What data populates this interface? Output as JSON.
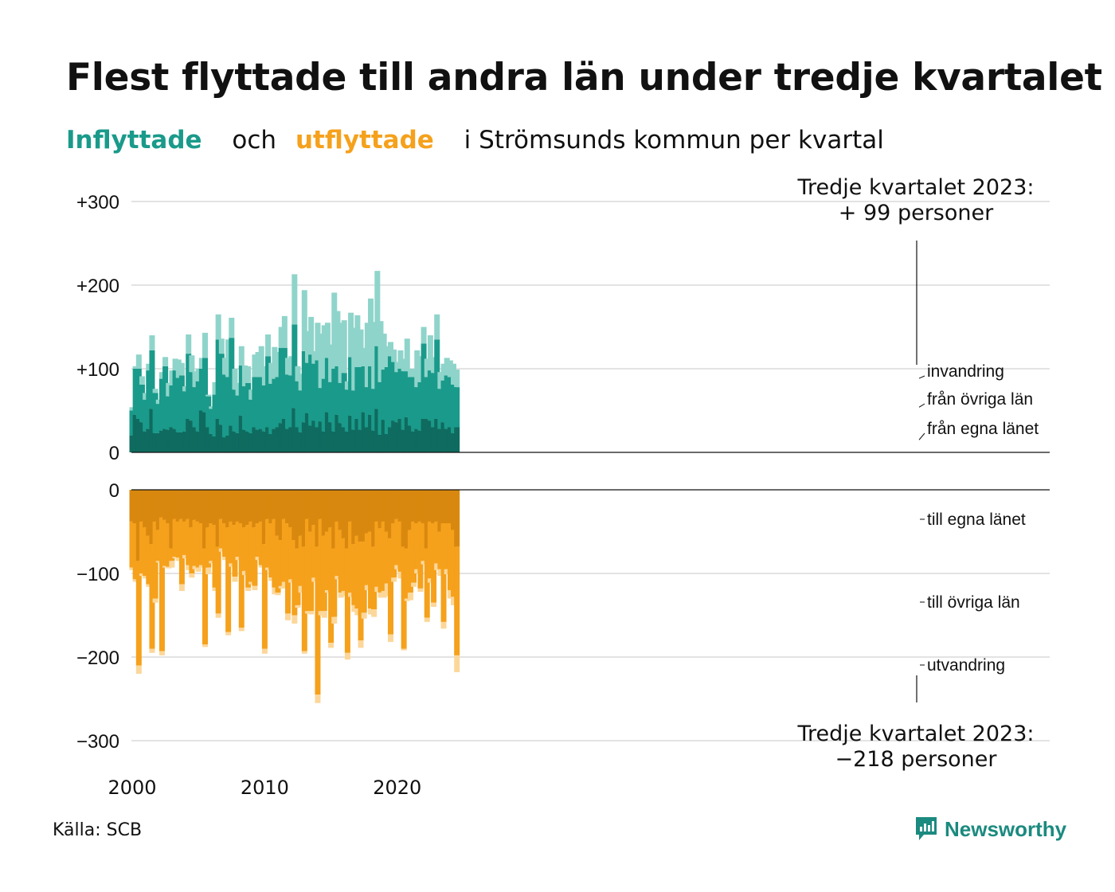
{
  "title": "Flest flyttade till andra län under tredje kvartalet",
  "subtitle": {
    "part1": "Inflyttade",
    "part2": "och",
    "part3": "utflyttade",
    "part4": "i Strömsunds  kommun  per  kvartal"
  },
  "source": "Källa: SCB",
  "brand": {
    "name": "Newsworthy",
    "icon": "newsworthy-logo-icon"
  },
  "colors": {
    "in_local": "#0f6b5f",
    "in_other": "#1a9a8a",
    "in_immig": "#8fd4ca",
    "out_local": "#d9880f",
    "out_other": "#f5a11c",
    "out_emig": "#fcd79a",
    "gridline": "#e3e3e3",
    "text": "#111111"
  },
  "chart_data": {
    "type": "bar",
    "stacked": true,
    "x_start": "2000 Q1",
    "x_end": "2023 Q3",
    "year_ticks": [
      "2000",
      "2010",
      "2020"
    ],
    "grid": true,
    "top_panel": {
      "ylim": [
        0,
        300
      ],
      "y_ticks": [
        "0",
        "+100",
        "+200",
        "+300"
      ],
      "annotation": {
        "line1": "Tredje kvartalet 2023:",
        "line2": "+ 99 personer"
      },
      "series_labels": {
        "immig": "invandring",
        "other": "från övriga län",
        "local": "från egna länet"
      },
      "local": [
        20,
        45,
        40,
        36,
        25,
        28,
        52,
        23,
        23,
        26,
        28,
        27,
        30,
        28,
        24,
        24,
        25,
        40,
        38,
        30,
        25,
        50,
        48,
        30,
        22,
        19,
        40,
        33,
        18,
        20,
        32,
        25,
        23,
        44,
        27,
        25,
        23,
        30,
        27,
        28,
        25,
        30,
        22,
        28,
        30,
        35,
        40,
        28,
        30,
        53,
        30,
        24,
        36,
        47,
        32,
        38,
        30,
        37,
        25,
        48,
        36,
        25,
        45,
        35,
        30,
        25,
        44,
        27,
        40,
        27,
        48,
        30,
        45,
        26,
        52,
        21,
        39,
        22,
        30,
        38,
        36,
        40,
        27,
        42,
        32,
        25,
        28,
        26,
        40,
        40,
        38,
        30,
        40,
        28,
        36,
        28,
        30,
        23,
        30
      ],
      "other": [
        30,
        55,
        60,
        45,
        38,
        70,
        70,
        48,
        35,
        62,
        75,
        40,
        50,
        70,
        65,
        68,
        48,
        78,
        58,
        48,
        60,
        50,
        65,
        37,
        30,
        50,
        95,
        85,
        75,
        70,
        105,
        50,
        45,
        60,
        52,
        58,
        40,
        60,
        63,
        62,
        55,
        85,
        60,
        60,
        60,
        90,
        85,
        65,
        62,
        100,
        55,
        50,
        85,
        60,
        85,
        68,
        80,
        40,
        63,
        65,
        48,
        75,
        58,
        48,
        65,
        50,
        70,
        47,
        62,
        75,
        55,
        48,
        58,
        50,
        75,
        63,
        60,
        80,
        85,
        70,
        60,
        60,
        70,
        55,
        58,
        65,
        50,
        58,
        90,
        50,
        60,
        65,
        95,
        48,
        50,
        64,
        60,
        58,
        48
      ],
      "immig": [
        4,
        3,
        17,
        10,
        8,
        8,
        18,
        5,
        5,
        8,
        11,
        16,
        18,
        14,
        22,
        15,
        6,
        23,
        20,
        19,
        15,
        13,
        30,
        2,
        3,
        15,
        30,
        18,
        20,
        45,
        24,
        25,
        15,
        23,
        25,
        20,
        12,
        27,
        30,
        37,
        23,
        26,
        25,
        38,
        30,
        25,
        38,
        20,
        23,
        60,
        18,
        20,
        73,
        38,
        45,
        15,
        45,
        65,
        64,
        42,
        45,
        91,
        66,
        72,
        63,
        10,
        53,
        75,
        62,
        45,
        22,
        77,
        81,
        80,
        90,
        73,
        43,
        25,
        17,
        15,
        12,
        22,
        15,
        39,
        10,
        10,
        44,
        31,
        20,
        22,
        42,
        19,
        30,
        20,
        20,
        21,
        20,
        25,
        21
      ]
    },
    "bottom_panel": {
      "ylim": [
        -300,
        0
      ],
      "y_ticks": [
        "0",
        "−100",
        "−200",
        "−300"
      ],
      "annotation": {
        "line1": "Tredje kvartalet 2023:",
        "line2": "−218 personer"
      },
      "series_labels": {
        "local": "till egna länet",
        "other": "till övriga län",
        "emig": "utvandring"
      },
      "local": [
        -38,
        -40,
        -85,
        -38,
        -45,
        -55,
        -65,
        -38,
        -48,
        -33,
        -36,
        -40,
        -70,
        -35,
        -38,
        -35,
        -38,
        -35,
        -45,
        -36,
        -38,
        -40,
        -70,
        -45,
        -40,
        -42,
        -68,
        -35,
        -40,
        -45,
        -38,
        -42,
        -38,
        -40,
        -45,
        -42,
        -38,
        -45,
        -40,
        -38,
        -65,
        -35,
        -40,
        -35,
        -55,
        -60,
        -35,
        -40,
        -45,
        -60,
        -70,
        -55,
        -68,
        -35,
        -50,
        -42,
        -68,
        -35,
        -55,
        -50,
        -45,
        -70,
        -38,
        -48,
        -58,
        -70,
        -38,
        -65,
        -55,
        -62,
        -62,
        -52,
        -50,
        -68,
        -38,
        -46,
        -38,
        -50,
        -58,
        -40,
        -35,
        -38,
        -68,
        -70,
        -48,
        -38,
        -40,
        -38,
        -40,
        -70,
        -38,
        -40,
        -38,
        -50,
        -40,
        -40,
        -40,
        -48,
        -68
      ],
      "other": [
        -55,
        -67,
        -125,
        -62,
        -58,
        -58,
        -125,
        -92,
        -37,
        -160,
        -55,
        -52,
        -15,
        -45,
        -43,
        -78,
        -40,
        -55,
        -55,
        -55,
        -55,
        -50,
        -115,
        -48,
        -45,
        -75,
        -80,
        -35,
        -40,
        -125,
        -50,
        -62,
        -42,
        -125,
        -52,
        -75,
        -72,
        -70,
        -40,
        -52,
        -125,
        -58,
        -65,
        -82,
        -68,
        -55,
        -75,
        -108,
        -62,
        -90,
        -68,
        -60,
        -125,
        -110,
        -95,
        -63,
        -177,
        -110,
        -90,
        -70,
        -138,
        -82,
        -65,
        -75,
        -63,
        -125,
        -85,
        -73,
        -87,
        -118,
        -85,
        -62,
        -92,
        -75,
        -78,
        -77,
        -83,
        -62,
        -115,
        -65,
        -55,
        -60,
        -122,
        -60,
        -75,
        -73,
        -55,
        -80,
        -45,
        -83,
        -68,
        -95,
        -50,
        -45,
        -118,
        -55,
        -80,
        -80,
        -130
      ],
      "emig": [
        -3,
        -3,
        -10,
        -3,
        -3,
        -3,
        -5,
        -5,
        -2,
        -5,
        -2,
        -2,
        -8,
        -2,
        -4,
        -8,
        -4,
        -6,
        -5,
        -4,
        -5,
        -3,
        -3,
        -8,
        -3,
        -4,
        -5,
        -4,
        -4,
        -4,
        -4,
        -6,
        -4,
        -4,
        -5,
        -4,
        -3,
        -5,
        -4,
        -3,
        -6,
        -3,
        -4,
        -8,
        -3,
        -3,
        -8,
        -8,
        -4,
        -10,
        -3,
        -8,
        -3,
        -3,
        -4,
        -5,
        -10,
        -5,
        -8,
        -3,
        -6,
        -8,
        -4,
        -6,
        -6,
        -8,
        -5,
        -8,
        -8,
        -9,
        -7,
        -6,
        -7,
        -9,
        -6,
        -6,
        -8,
        -15,
        -9,
        -5,
        -5,
        -8,
        -2,
        -3,
        -9,
        -5,
        -5,
        -4,
        -4,
        -5,
        -5,
        -5,
        -8,
        -8,
        -8,
        -6,
        -10,
        -10,
        -20
      ]
    }
  }
}
